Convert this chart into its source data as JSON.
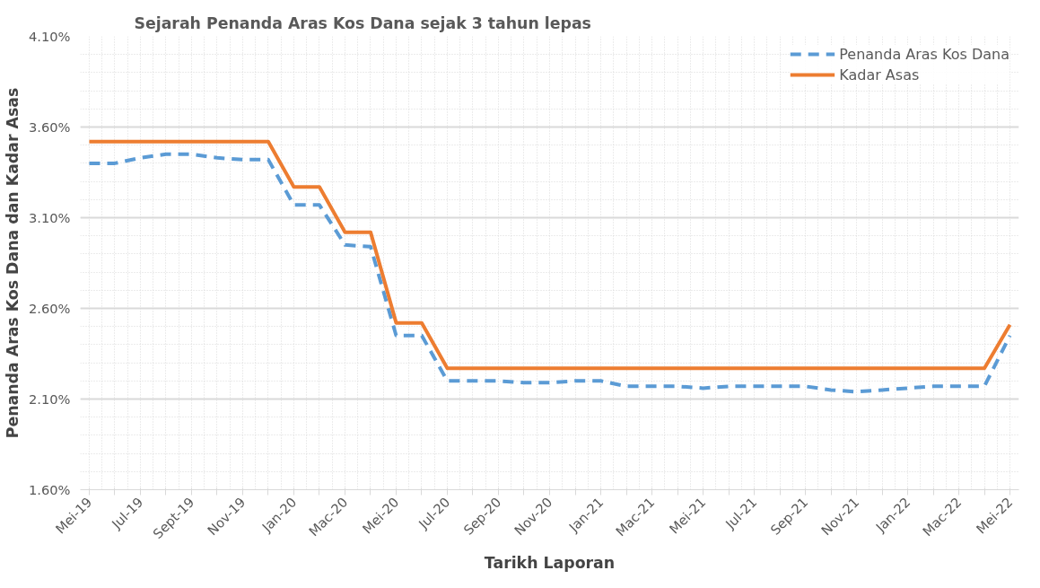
{
  "chart_data": {
    "type": "line",
    "title": "Sejarah Penanda Aras Kos Dana sejak 3 tahun lepas",
    "xlabel": "Tarikh Laporan",
    "ylabel": "Penanda Aras Kos Dana dan Kadar Asas",
    "categories": [
      "Mei-19",
      null,
      "Jul-19",
      null,
      "Sept-19",
      null,
      "Nov-19",
      null,
      "Jan-20",
      null,
      "Mac-20",
      null,
      "Mei-20",
      null,
      "Jul-20",
      null,
      "Sep-20",
      null,
      "Nov-20",
      null,
      "Jan-21",
      null,
      "Mac-21",
      null,
      "Mei-21",
      null,
      "Jul-21",
      null,
      "Sep-21",
      null,
      "Nov-21",
      null,
      "Jan-22",
      null,
      "Mac-22",
      null,
      "Mei-22"
    ],
    "series": [
      {
        "name": "Penanda Aras Kos Dana",
        "color": "#5b9bd5",
        "line_style": "dashed",
        "values": [
          3.4,
          3.4,
          3.43,
          3.45,
          3.45,
          3.43,
          3.42,
          3.42,
          3.17,
          3.17,
          2.95,
          2.94,
          2.45,
          2.45,
          2.2,
          2.2,
          2.2,
          2.19,
          2.19,
          2.2,
          2.2,
          2.17,
          2.17,
          2.17,
          2.16,
          2.17,
          2.17,
          2.17,
          2.17,
          2.15,
          2.14,
          2.15,
          2.16,
          2.17,
          2.17,
          2.17,
          2.45
        ]
      },
      {
        "name": "Kadar Asas",
        "color": "#ed7d31",
        "line_style": "solid",
        "values": [
          3.52,
          3.52,
          3.52,
          3.52,
          3.52,
          3.52,
          3.52,
          3.52,
          3.27,
          3.27,
          3.02,
          3.02,
          2.52,
          2.52,
          2.27,
          2.27,
          2.27,
          2.27,
          2.27,
          2.27,
          2.27,
          2.27,
          2.27,
          2.27,
          2.27,
          2.27,
          2.27,
          2.27,
          2.27,
          2.27,
          2.27,
          2.27,
          2.27,
          2.27,
          2.27,
          2.27,
          2.51
        ]
      }
    ],
    "ylim": [
      1.6,
      4.1
    ],
    "yticks": [
      {
        "value": 1.6,
        "label": "1.60%"
      },
      {
        "value": 2.1,
        "label": "2.10%"
      },
      {
        "value": 2.6,
        "label": "2.60%"
      },
      {
        "value": 3.1,
        "label": "3.10%"
      },
      {
        "value": 3.6,
        "label": "3.60%"
      },
      {
        "value": 4.1,
        "label": "4.10%"
      }
    ],
    "grid": true,
    "legend": "top right",
    "marker": "none"
  }
}
